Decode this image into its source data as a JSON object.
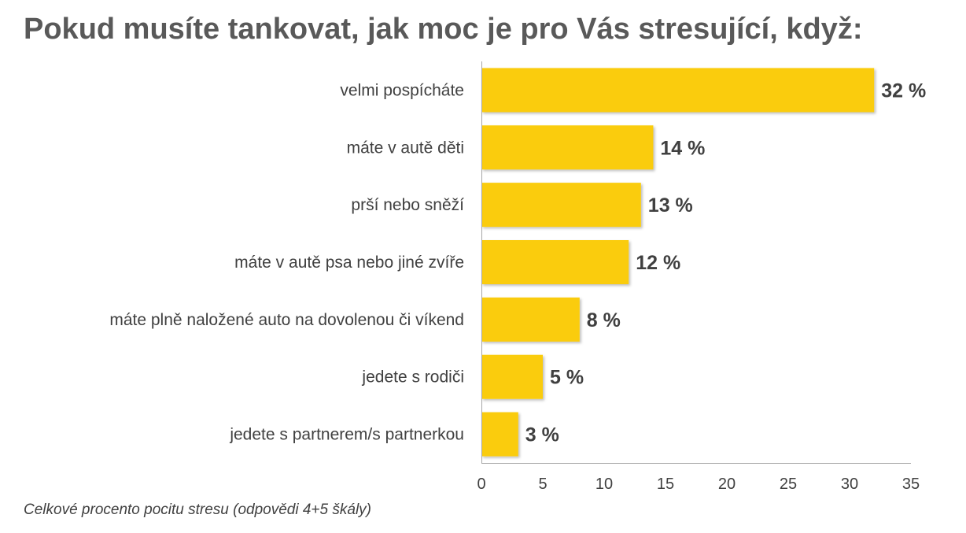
{
  "title": "Pokud musíte tankovat, jak moc je pro Vás stresující, když:",
  "footnote": "Celkové procento pocitu stresu (odpovědi 4+5 škály)",
  "colors": {
    "bar": "#FACC08",
    "text": "#404040",
    "axis": "#A6A6A6"
  },
  "chart_data": {
    "type": "bar",
    "orientation": "horizontal",
    "title": "Pokud musíte tankovat, jak moc je pro Vás stresující, když:",
    "categories": [
      "velmi pospícháte",
      "máte v autě děti",
      "prší nebo sněží",
      "máte v autě psa nebo jiné zvíře",
      "máte plně naložené auto na dovolenou či víkend",
      "jedete s rodiči",
      "jedete s partnerem/s partnerkou"
    ],
    "values": [
      32,
      14,
      13,
      12,
      8,
      5,
      3
    ],
    "value_labels": [
      "32 %",
      "14 %",
      "13 %",
      "12 %",
      "8 %",
      "5 %",
      "3 %"
    ],
    "xlim": [
      0,
      35
    ],
    "xticks": [
      0,
      5,
      10,
      15,
      20,
      25,
      30,
      35
    ],
    "grid": false,
    "legend": "none"
  }
}
